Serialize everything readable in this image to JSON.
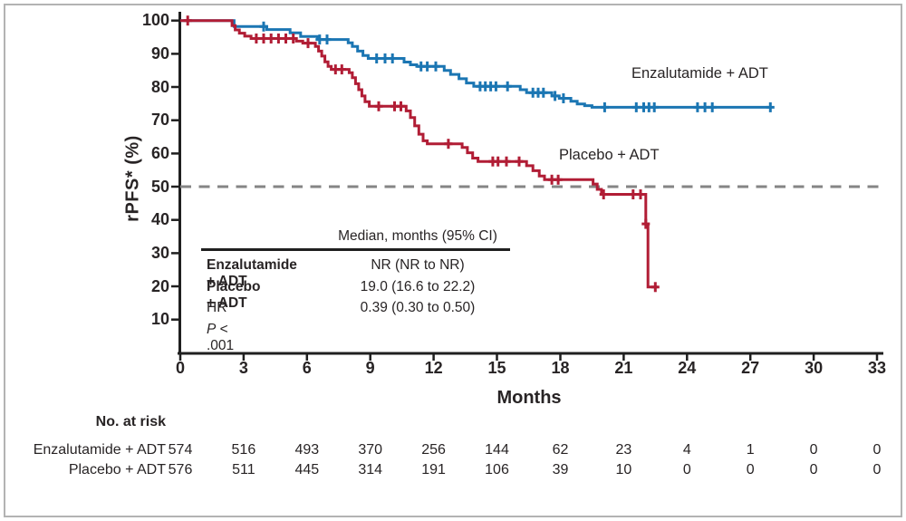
{
  "stats": {
    "header": "Median, months (95% CI)",
    "rows": [
      {
        "label": "Enzalutamide + ADT",
        "value": "NR (NR to NR)",
        "bold_label": true
      },
      {
        "label": "Placebo + ADT",
        "value": "19.0 (16.6 to 22.2)",
        "bold_label": true
      },
      {
        "label": "HR",
        "value": "0.39 (0.30 to 0.50)",
        "bold_label": false
      },
      {
        "italic_prefix": "P",
        "label": " < .001",
        "value": "",
        "bold_label": false
      }
    ]
  },
  "at_risk": {
    "title": "No. at risk",
    "rows": [
      {
        "label": "Enzalutamide + ADT",
        "counts": [
          574,
          516,
          493,
          370,
          256,
          144,
          62,
          23,
          4,
          1,
          0,
          0
        ]
      },
      {
        "label": "Placebo + ADT",
        "counts": [
          576,
          511,
          445,
          314,
          191,
          106,
          39,
          10,
          0,
          0,
          0,
          0
        ]
      }
    ]
  },
  "colors": {
    "enzalutamide": "#1b76b3",
    "placebo": "#b11d35",
    "axis": "#1f1f1f",
    "reference_dash": "#858585",
    "text": "#282425",
    "frame_border": "#b3b3b3"
  },
  "chart_data": {
    "type": "line",
    "variant": "kaplan_meier_step",
    "title": "",
    "xlabel": "Months",
    "ylabel": "rPFS* (%)",
    "xlim": [
      0,
      33
    ],
    "ylim": [
      0,
      100
    ],
    "xticks": [
      0,
      3,
      6,
      9,
      12,
      15,
      18,
      21,
      24,
      27,
      30,
      33
    ],
    "yticks": [
      100,
      90,
      80,
      70,
      60,
      50,
      40,
      30,
      20,
      10
    ],
    "grid": false,
    "legend_position": "inline-labels",
    "reference_line": {
      "y": 50,
      "style": "dashed"
    },
    "series": [
      {
        "name": "Enzalutamide + ADT",
        "color": "#1b76b3",
        "steps": [
          [
            0,
            100
          ],
          [
            2.55,
            98.2
          ],
          [
            4.1,
            97.3
          ],
          [
            5.2,
            96.3
          ],
          [
            5.7,
            95.2
          ],
          [
            6.5,
            94.3
          ],
          [
            7.95,
            93.3
          ],
          [
            8.15,
            92.2
          ],
          [
            8.4,
            90.8
          ],
          [
            8.65,
            89.5
          ],
          [
            8.9,
            88.6
          ],
          [
            10.6,
            87.5
          ],
          [
            10.9,
            86.7
          ],
          [
            11.2,
            86.2
          ],
          [
            12.5,
            85.0
          ],
          [
            12.8,
            83.8
          ],
          [
            13.2,
            82.5
          ],
          [
            13.55,
            81.2
          ],
          [
            13.9,
            80.2
          ],
          [
            16.1,
            79.2
          ],
          [
            16.4,
            78.3
          ],
          [
            17.6,
            77.3
          ],
          [
            17.95,
            76.6
          ],
          [
            18.5,
            75.7
          ],
          [
            18.8,
            74.9
          ],
          [
            19.15,
            74.4
          ],
          [
            19.5,
            73.9
          ],
          [
            28.0,
            73.9
          ]
        ],
        "censors": [
          [
            3.95,
            98.2
          ],
          [
            6.6,
            94.3
          ],
          [
            6.95,
            94.3
          ],
          [
            9.3,
            88.6
          ],
          [
            9.7,
            88.6
          ],
          [
            10.05,
            88.6
          ],
          [
            11.4,
            86.2
          ],
          [
            11.7,
            86.2
          ],
          [
            12.1,
            86.2
          ],
          [
            14.2,
            80.2
          ],
          [
            14.45,
            80.2
          ],
          [
            14.7,
            80.2
          ],
          [
            14.95,
            80.2
          ],
          [
            15.5,
            80.2
          ],
          [
            16.7,
            78.3
          ],
          [
            16.95,
            78.3
          ],
          [
            17.2,
            78.3
          ],
          [
            17.75,
            77.3
          ],
          [
            18.15,
            76.6
          ],
          [
            20.1,
            73.9
          ],
          [
            21.6,
            73.9
          ],
          [
            21.95,
            73.9
          ],
          [
            22.2,
            73.9
          ],
          [
            22.45,
            73.9
          ],
          [
            24.5,
            73.9
          ],
          [
            24.85,
            73.9
          ],
          [
            25.2,
            73.9
          ],
          [
            27.95,
            73.9
          ]
        ]
      },
      {
        "name": "Placebo + ADT",
        "color": "#b11d35",
        "steps": [
          [
            0,
            100
          ],
          [
            2.45,
            98.5
          ],
          [
            2.6,
            97.2
          ],
          [
            2.8,
            96.2
          ],
          [
            3.05,
            95.3
          ],
          [
            3.35,
            94.6
          ],
          [
            5.5,
            93.8
          ],
          [
            5.8,
            93.2
          ],
          [
            6.4,
            92.2
          ],
          [
            6.55,
            90.8
          ],
          [
            6.7,
            89.3
          ],
          [
            6.85,
            87.6
          ],
          [
            7.0,
            86.2
          ],
          [
            7.15,
            85.3
          ],
          [
            8.0,
            84.3
          ],
          [
            8.15,
            82.8
          ],
          [
            8.3,
            81.0
          ],
          [
            8.45,
            79.2
          ],
          [
            8.6,
            77.3
          ],
          [
            8.75,
            75.6
          ],
          [
            8.95,
            74.2
          ],
          [
            10.7,
            72.8
          ],
          [
            10.9,
            70.8
          ],
          [
            11.1,
            68.3
          ],
          [
            11.3,
            65.8
          ],
          [
            11.5,
            63.8
          ],
          [
            11.7,
            62.9
          ],
          [
            13.35,
            61.8
          ],
          [
            13.6,
            60.2
          ],
          [
            13.85,
            58.6
          ],
          [
            14.1,
            57.6
          ],
          [
            16.4,
            56.3
          ],
          [
            16.7,
            54.8
          ],
          [
            17.0,
            53.2
          ],
          [
            17.25,
            52.1
          ],
          [
            19.55,
            50.8
          ],
          [
            19.75,
            49.2
          ],
          [
            19.95,
            47.7
          ],
          [
            22.05,
            38.8
          ],
          [
            22.15,
            19.8
          ],
          [
            22.6,
            19.8
          ]
        ],
        "censors": [
          [
            0.35,
            100
          ],
          [
            3.6,
            94.6
          ],
          [
            3.95,
            94.6
          ],
          [
            4.3,
            94.6
          ],
          [
            4.65,
            94.6
          ],
          [
            5.0,
            94.6
          ],
          [
            5.35,
            94.6
          ],
          [
            6.05,
            93.2
          ],
          [
            7.35,
            85.3
          ],
          [
            7.65,
            85.3
          ],
          [
            9.4,
            74.2
          ],
          [
            10.15,
            74.2
          ],
          [
            10.45,
            74.2
          ],
          [
            12.7,
            62.9
          ],
          [
            14.8,
            57.6
          ],
          [
            15.05,
            57.6
          ],
          [
            15.45,
            57.6
          ],
          [
            16.05,
            57.6
          ],
          [
            17.6,
            52.1
          ],
          [
            17.9,
            52.1
          ],
          [
            20.05,
            47.7
          ],
          [
            21.45,
            47.7
          ],
          [
            21.8,
            47.7
          ],
          [
            22.05,
            38.8
          ],
          [
            22.5,
            19.8
          ]
        ]
      }
    ]
  }
}
